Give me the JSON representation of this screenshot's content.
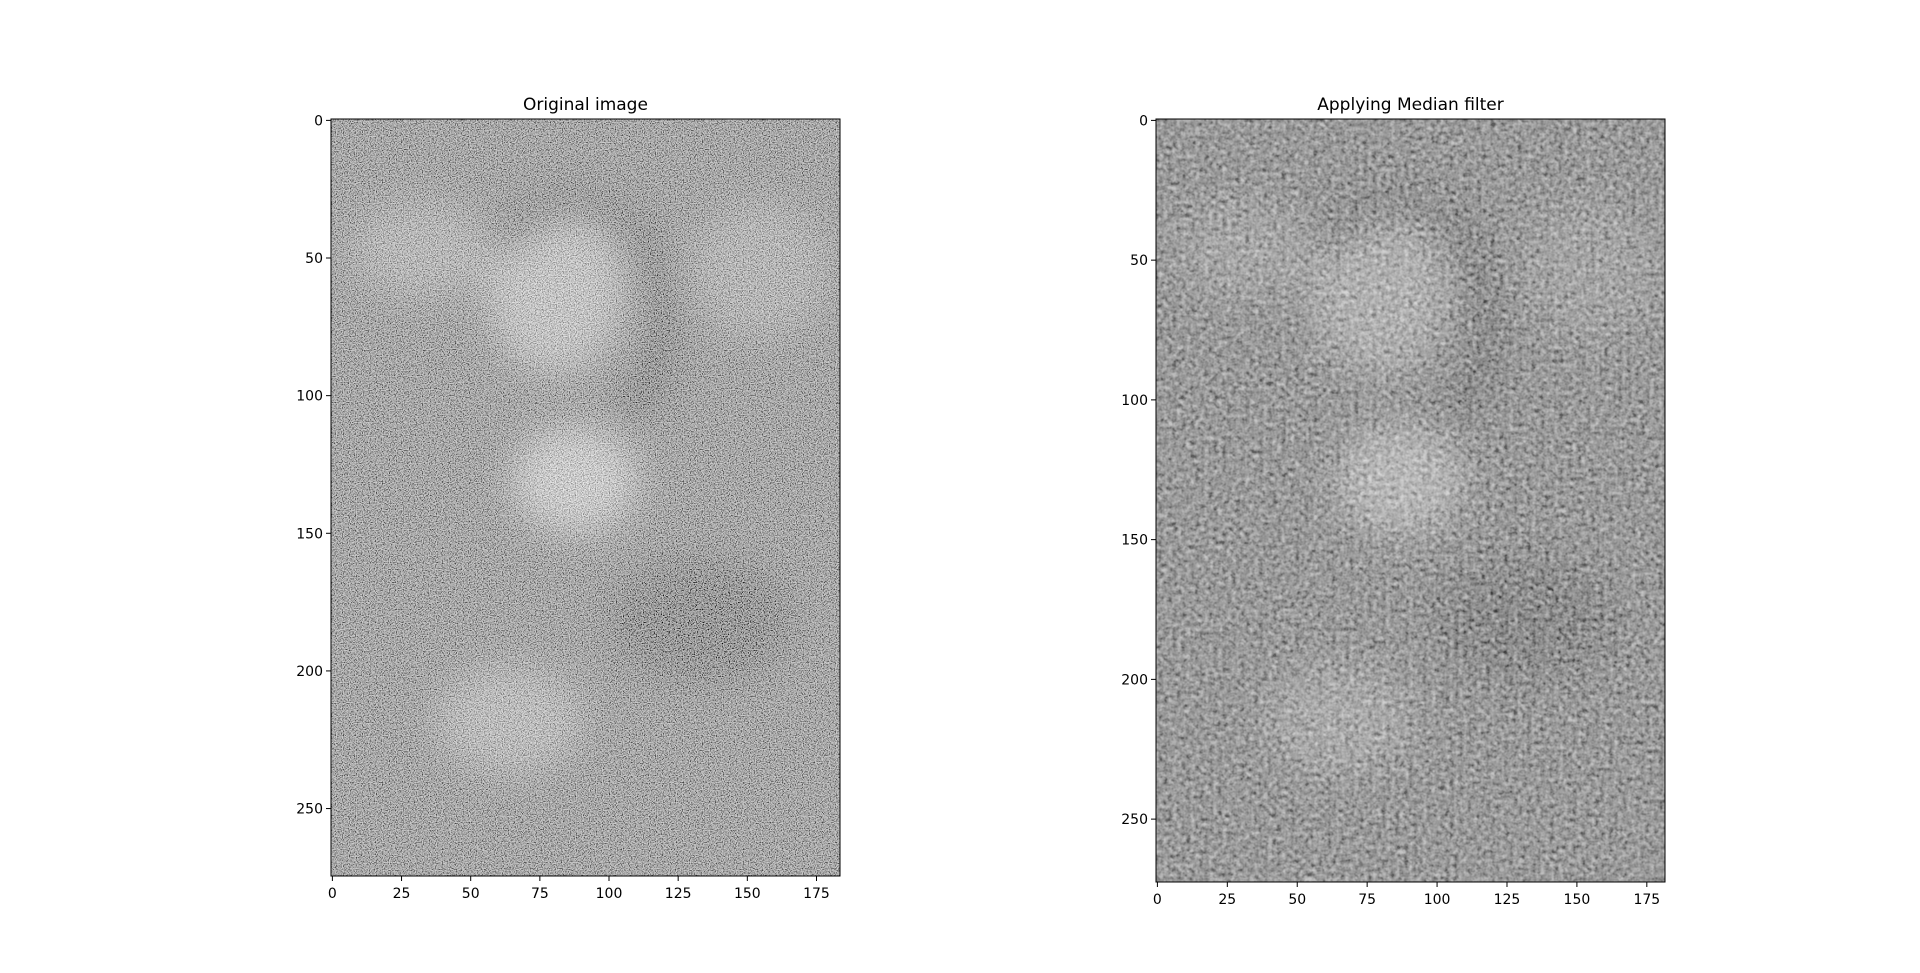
{
  "chart_data": [
    {
      "type": "heatmap",
      "render": "grayscale image",
      "title": "Original image",
      "noise": "strong salt-and-pepper / speckle",
      "image_width": 183,
      "image_height": 274,
      "xlim": [
        -0.5,
        183.5
      ],
      "ylim": [
        274.5,
        -0.5
      ],
      "xticks": [
        0,
        25,
        50,
        75,
        100,
        125,
        150,
        175
      ],
      "yticks": [
        0,
        50,
        100,
        150,
        200,
        250
      ],
      "grid": false
    },
    {
      "type": "heatmap",
      "render": "grayscale image",
      "title": "Applying Median filter",
      "noise": "smoothed (median-filtered), mid-gray",
      "image_width": 181,
      "image_height": 272,
      "xlim": [
        -0.5,
        181.5
      ],
      "ylim": [
        272.5,
        -0.5
      ],
      "xticks": [
        0,
        25,
        50,
        75,
        100,
        125,
        150,
        175
      ],
      "yticks": [
        0,
        50,
        100,
        150,
        200,
        250
      ],
      "grid": false
    }
  ]
}
